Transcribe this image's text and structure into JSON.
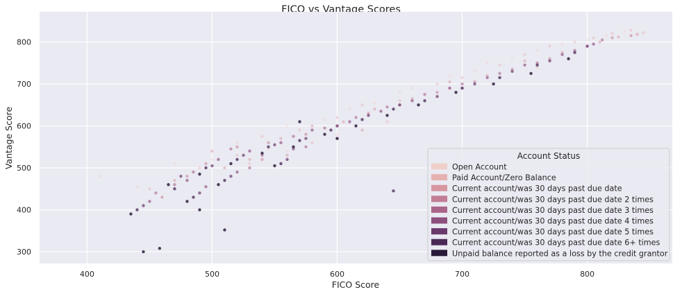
{
  "chart_data": {
    "type": "scatter",
    "title": "FICO vs Vantage Scores",
    "xlabel": "FICO Score",
    "ylabel": "Vantage Score",
    "xlim": [
      362,
      868
    ],
    "ylim": [
      272,
      872
    ],
    "xticks": [
      400,
      500,
      600,
      700,
      800
    ],
    "yticks": [
      300,
      400,
      500,
      600,
      700,
      800
    ],
    "grid": true,
    "background": "#eaeaf2",
    "legend": {
      "title": "Account Status",
      "placement": "lower-right",
      "entries": [
        {
          "label": "Open Account",
          "color": "#efd0c9"
        },
        {
          "label": "Paid Account/Zero Balance",
          "color": "#e6b2b1"
        },
        {
          "label": "Current account/was 30 days past due date",
          "color": "#d696a0"
        },
        {
          "label": "Current account/was 30 days past due date 2 times",
          "color": "#c27c93"
        },
        {
          "label": "Current account/was 30 days past due date 3 times",
          "color": "#a96488"
        },
        {
          "label": "Current account/was 30 days past due date 4 times",
          "color": "#8c4f7e"
        },
        {
          "label": "Current account/was 30 days past due date 5 times",
          "color": "#6b3a6d"
        },
        {
          "label": "Current account/was 30 days past due date 6+ times",
          "color": "#4a2957"
        },
        {
          "label": "Unpaid balance reported as a loss by the credit grantor",
          "color": "#2a1a3a"
        }
      ]
    },
    "series": [
      {
        "name": "Open Account",
        "points": [
          [
            410,
            480
          ],
          [
            440,
            455
          ],
          [
            470,
            510
          ],
          [
            500,
            520
          ],
          [
            520,
            560
          ],
          [
            545,
            545
          ],
          [
            560,
            600
          ],
          [
            590,
            615
          ],
          [
            610,
            640
          ],
          [
            630,
            655
          ],
          [
            660,
            690
          ],
          [
            690,
            720
          ],
          [
            710,
            730
          ],
          [
            740,
            760
          ],
          [
            760,
            780
          ],
          [
            780,
            795
          ],
          [
            800,
            805
          ],
          [
            815,
            815
          ],
          [
            830,
            825
          ],
          [
            840,
            820
          ],
          [
            600,
            580
          ],
          [
            650,
            680
          ],
          [
            720,
            750
          ],
          [
            560,
            540
          ],
          [
            480,
            470
          ]
        ]
      },
      {
        "name": "Paid Account/Zero Balance",
        "points": [
          [
            450,
            450
          ],
          [
            490,
            500
          ],
          [
            520,
            530
          ],
          [
            540,
            575
          ],
          [
            570,
            590
          ],
          [
            600,
            620
          ],
          [
            620,
            650
          ],
          [
            650,
            660
          ],
          [
            680,
            700
          ],
          [
            700,
            715
          ],
          [
            730,
            745
          ],
          [
            750,
            770
          ],
          [
            770,
            790
          ],
          [
            790,
            800
          ],
          [
            805,
            810
          ],
          [
            820,
            820
          ],
          [
            835,
            828
          ],
          [
            845,
            822
          ],
          [
            760,
            740
          ],
          [
            690,
            690
          ],
          [
            640,
            610
          ],
          [
            580,
            560
          ],
          [
            530,
            510
          ]
        ]
      },
      {
        "name": "Current account/was 30 days past due date",
        "points": [
          [
            470,
            470
          ],
          [
            500,
            540
          ],
          [
            530,
            520
          ],
          [
            555,
            570
          ],
          [
            580,
            600
          ],
          [
            605,
            610
          ],
          [
            630,
            640
          ],
          [
            660,
            665
          ],
          [
            690,
            705
          ],
          [
            720,
            720
          ],
          [
            750,
            755
          ],
          [
            780,
            775
          ],
          [
            810,
            800
          ],
          [
            825,
            812
          ],
          [
            840,
            818
          ],
          [
            700,
            690
          ],
          [
            620,
            590
          ],
          [
            560,
            530
          ],
          [
            510,
            500
          ]
        ]
      },
      {
        "name": "Current account/was 30 days past due date 2 times",
        "points": [
          [
            460,
            430
          ],
          [
            495,
            510
          ],
          [
            520,
            550
          ],
          [
            545,
            560
          ],
          [
            575,
            580
          ],
          [
            600,
            600
          ],
          [
            625,
            630
          ],
          [
            650,
            650
          ],
          [
            680,
            680
          ],
          [
            710,
            705
          ],
          [
            740,
            735
          ],
          [
            770,
            760
          ],
          [
            800,
            790
          ],
          [
            820,
            810
          ],
          [
            835,
            815
          ],
          [
            600,
            570
          ],
          [
            540,
            520
          ],
          [
            480,
            480
          ]
        ]
      },
      {
        "name": "Current account/was 30 days past due date 3 times",
        "points": [
          [
            455,
            440
          ],
          [
            485,
            490
          ],
          [
            515,
            545
          ],
          [
            540,
            530
          ],
          [
            565,
            575
          ],
          [
            590,
            595
          ],
          [
            615,
            620
          ],
          [
            640,
            645
          ],
          [
            670,
            675
          ],
          [
            700,
            700
          ],
          [
            730,
            725
          ],
          [
            760,
            750
          ],
          [
            790,
            780
          ],
          [
            812,
            805
          ],
          [
            575,
            550
          ],
          [
            530,
            500
          ],
          [
            470,
            460
          ]
        ]
      },
      {
        "name": "Current account/was 30 days past due date 4 times",
        "points": [
          [
            450,
            420
          ],
          [
            480,
            470
          ],
          [
            505,
            520
          ],
          [
            530,
            540
          ],
          [
            555,
            560
          ],
          [
            580,
            590
          ],
          [
            610,
            610
          ],
          [
            635,
            635
          ],
          [
            660,
            660
          ],
          [
            690,
            690
          ],
          [
            720,
            715
          ],
          [
            750,
            745
          ],
          [
            780,
            770
          ],
          [
            805,
            795
          ],
          [
            565,
            545
          ],
          [
            520,
            490
          ],
          [
            495,
            455
          ]
        ]
      },
      {
        "name": "Current account/was 30 days past due date 5 times",
        "points": [
          [
            445,
            410
          ],
          [
            475,
            480
          ],
          [
            500,
            505
          ],
          [
            525,
            530
          ],
          [
            550,
            555
          ],
          [
            575,
            570
          ],
          [
            600,
            600
          ],
          [
            625,
            625
          ],
          [
            650,
            650
          ],
          [
            680,
            670
          ],
          [
            710,
            700
          ],
          [
            740,
            730
          ],
          [
            770,
            755
          ],
          [
            800,
            790
          ],
          [
            560,
            520
          ],
          [
            515,
            480
          ],
          [
            490,
            440
          ]
        ]
      },
      {
        "name": "Current account/was 30 days past due date 6+ times",
        "points": [
          [
            440,
            400
          ],
          [
            470,
            450
          ],
          [
            495,
            500
          ],
          [
            520,
            520
          ],
          [
            545,
            550
          ],
          [
            570,
            565
          ],
          [
            595,
            590
          ],
          [
            620,
            615
          ],
          [
            645,
            640
          ],
          [
            670,
            660
          ],
          [
            700,
            690
          ],
          [
            730,
            715
          ],
          [
            760,
            745
          ],
          [
            790,
            775
          ],
          [
            555,
            510
          ],
          [
            510,
            470
          ],
          [
            485,
            430
          ],
          [
            645,
            445
          ]
        ]
      },
      {
        "name": "Unpaid balance reported as a loss by the credit grantor",
        "points": [
          [
            435,
            390
          ],
          [
            465,
            460
          ],
          [
            490,
            485
          ],
          [
            515,
            510
          ],
          [
            540,
            535
          ],
          [
            565,
            550
          ],
          [
            590,
            580
          ],
          [
            615,
            600
          ],
          [
            640,
            625
          ],
          [
            665,
            650
          ],
          [
            695,
            680
          ],
          [
            725,
            700
          ],
          [
            755,
            725
          ],
          [
            785,
            760
          ],
          [
            550,
            505
          ],
          [
            505,
            460
          ],
          [
            480,
            420
          ],
          [
            445,
            300
          ],
          [
            458,
            308
          ],
          [
            510,
            352
          ],
          [
            490,
            400
          ],
          [
            570,
            610
          ],
          [
            600,
            570
          ]
        ]
      }
    ]
  }
}
